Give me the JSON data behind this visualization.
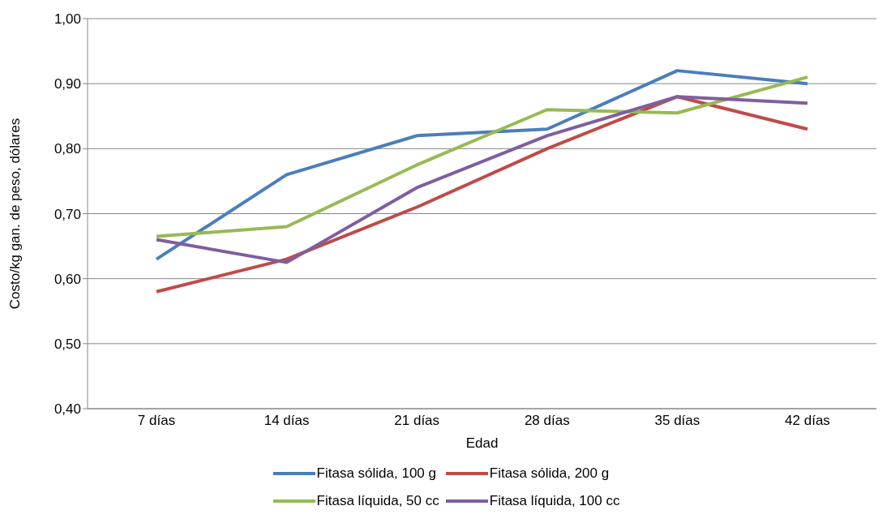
{
  "chart_data": {
    "type": "line",
    "xlabel": "Edad",
    "ylabel": "Costo/kg gan. de peso, dólares",
    "categories": [
      "7 días",
      "14 días",
      "21 días",
      "28 días",
      "35 días",
      "42 días"
    ],
    "series": [
      {
        "name": "Fitasa sólida, 100 g",
        "color": "#4a7ebb",
        "values": [
          0.63,
          0.76,
          0.82,
          0.83,
          0.92,
          0.9
        ]
      },
      {
        "name": "Fitasa sólida, 200 g",
        "color": "#be4b48",
        "values": [
          0.58,
          0.63,
          0.71,
          0.8,
          0.88,
          0.83
        ]
      },
      {
        "name": "Fitasa líquida, 50 cc",
        "color": "#98b954",
        "values": [
          0.665,
          0.68,
          0.775,
          0.86,
          0.855,
          0.91
        ]
      },
      {
        "name": "Fitasa líquida, 100 cc",
        "color": "#7d5fa0",
        "values": [
          0.66,
          0.625,
          0.74,
          0.82,
          0.88,
          0.87
        ]
      }
    ],
    "ylim": [
      0.4,
      1.0
    ],
    "yticks": [
      {
        "value": 0.4,
        "label": "0,40"
      },
      {
        "value": 0.5,
        "label": "0,50"
      },
      {
        "value": 0.6,
        "label": "0,60"
      },
      {
        "value": 0.7,
        "label": "0,70"
      },
      {
        "value": 0.8,
        "label": "0,80"
      },
      {
        "value": 0.9,
        "label": "0,90"
      },
      {
        "value": 1.0,
        "label": "1,00"
      }
    ],
    "grid": "y",
    "legend": "bottom",
    "marker": "none",
    "line_style": "solid"
  }
}
